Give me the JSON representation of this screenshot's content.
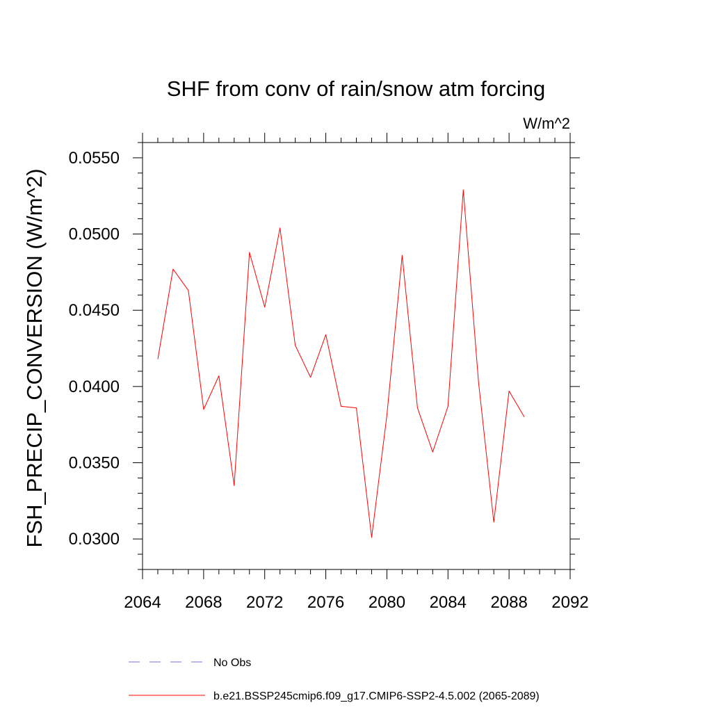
{
  "chart_data": {
    "type": "line",
    "title": "SHF from conv of rain/snow atm forcing",
    "units_label": "W/m^2",
    "ylabel": "FSH_PRECIP_CONVERSION  (W/m^2)",
    "xlabel": "",
    "xlim": [
      2064,
      2092
    ],
    "ylim": [
      0.028,
      0.056
    ],
    "x_ticks": [
      2064,
      2068,
      2072,
      2076,
      2080,
      2084,
      2088,
      2092
    ],
    "x_tick_labels": [
      "2064",
      "2068",
      "2072",
      "2076",
      "2080",
      "2084",
      "2088",
      "2092"
    ],
    "y_ticks": [
      0.03,
      0.035,
      0.04,
      0.045,
      0.05,
      0.055
    ],
    "y_tick_labels": [
      "0.0300",
      "0.0350",
      "0.0400",
      "0.0450",
      "0.0500",
      "0.0550"
    ],
    "grid": false,
    "legend_position": "bottom",
    "colors": {
      "series": "#ff0000",
      "no_obs": "#7b6fd0"
    },
    "legend": [
      {
        "label": "No Obs",
        "style": "dashed",
        "color": "#7b6fd0"
      },
      {
        "label": "b.e21.BSSP245cmip6.f09_g17.CMIP6-SSP2-4.5.002 (2065-2089)",
        "style": "solid",
        "color": "#ff0000"
      }
    ],
    "x": [
      2065,
      2066,
      2067,
      2068,
      2069,
      2070,
      2071,
      2072,
      2073,
      2074,
      2075,
      2076,
      2077,
      2078,
      2079,
      2080,
      2081,
      2082,
      2083,
      2084,
      2085,
      2086,
      2087,
      2088,
      2089
    ],
    "series": [
      {
        "name": "b.e21.BSSP245cmip6.f09_g17.CMIP6-SSP2-4.5.002 (2065-2089)",
        "values": [
          0.0418,
          0.0477,
          0.0463,
          0.0385,
          0.0407,
          0.0335,
          0.0488,
          0.0452,
          0.0504,
          0.0427,
          0.0406,
          0.0434,
          0.0387,
          0.0386,
          0.0301,
          0.0381,
          0.0486,
          0.0386,
          0.0357,
          0.0387,
          0.0529,
          0.0403,
          0.0311,
          0.0397,
          0.038
        ]
      }
    ]
  }
}
